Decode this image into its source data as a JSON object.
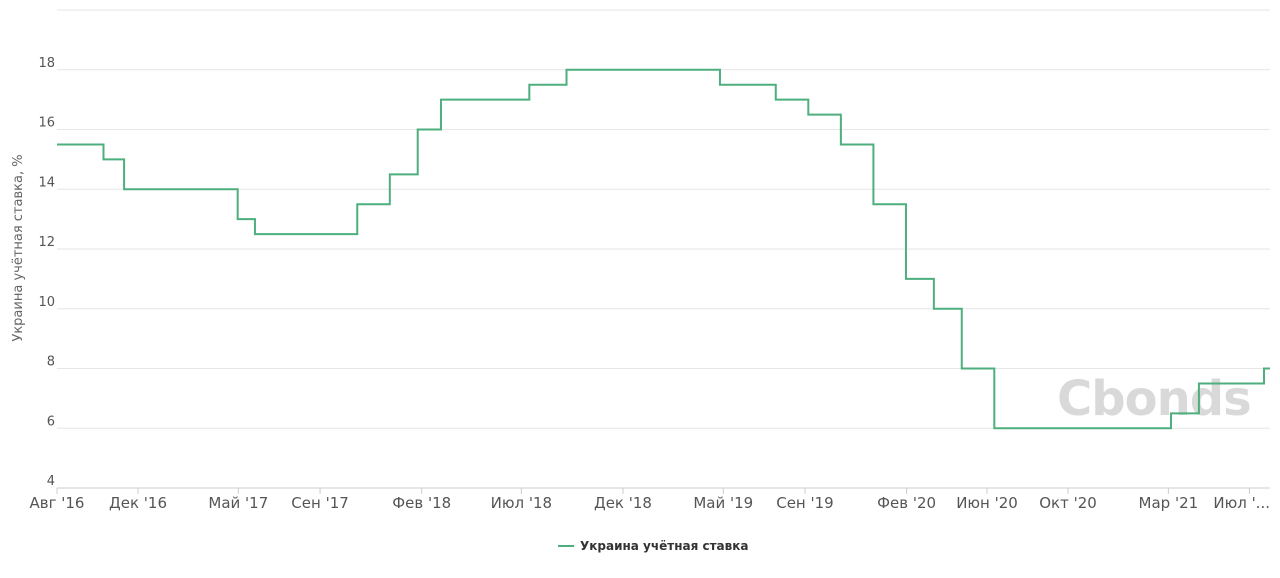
{
  "chart_data": {
    "type": "line",
    "step": true,
    "ylabel": "Украина учётная ставка, %",
    "ylim": [
      4,
      20
    ],
    "yticks": [
      4,
      6,
      8,
      10,
      12,
      14,
      16,
      18
    ],
    "grid": "horizontal",
    "legend_position": "bottom-center",
    "x_ticks": [
      {
        "date": "2016-08-01",
        "label": "Авг '16"
      },
      {
        "date": "2016-12-01",
        "label": "Дек '16"
      },
      {
        "date": "2017-05-01",
        "label": "Май '17"
      },
      {
        "date": "2017-09-01",
        "label": "Сен '17"
      },
      {
        "date": "2018-02-01",
        "label": "Фев '18"
      },
      {
        "date": "2018-07-01",
        "label": "Июл '18"
      },
      {
        "date": "2018-12-01",
        "label": "Дек '18"
      },
      {
        "date": "2019-05-01",
        "label": "Май '19"
      },
      {
        "date": "2019-09-01",
        "label": "Сен '19"
      },
      {
        "date": "2020-02-01",
        "label": "Фев '20"
      },
      {
        "date": "2020-06-01",
        "label": "Июн '20"
      },
      {
        "date": "2020-10-01",
        "label": "Окт '20"
      },
      {
        "date": "2021-03-01",
        "label": "Мар '21"
      },
      {
        "date": "2021-07-01",
        "label": "Июл '..."
      }
    ],
    "x_range": [
      "2016-08-01",
      "2021-08-01"
    ],
    "series": [
      {
        "name": "Украина учётная ставка",
        "color": "#4caf7d",
        "points": [
          {
            "date": "2016-08-01",
            "value": 15.5
          },
          {
            "date": "2016-10-10",
            "value": 15
          },
          {
            "date": "2016-11-10",
            "value": 14
          },
          {
            "date": "2017-04-30",
            "value": 13
          },
          {
            "date": "2017-05-26",
            "value": 12.5
          },
          {
            "date": "2017-10-27",
            "value": 13.5
          },
          {
            "date": "2017-12-15",
            "value": 14.5
          },
          {
            "date": "2018-01-26",
            "value": 16
          },
          {
            "date": "2018-03-02",
            "value": 17
          },
          {
            "date": "2018-07-13",
            "value": 17.5
          },
          {
            "date": "2018-09-07",
            "value": 18
          },
          {
            "date": "2019-04-26",
            "value": 17.5
          },
          {
            "date": "2019-07-19",
            "value": 17
          },
          {
            "date": "2019-09-06",
            "value": 16.5
          },
          {
            "date": "2019-10-25",
            "value": 15.5
          },
          {
            "date": "2019-12-13",
            "value": 13.5
          },
          {
            "date": "2020-01-31",
            "value": 11
          },
          {
            "date": "2020-03-13",
            "value": 10
          },
          {
            "date": "2020-04-24",
            "value": 8
          },
          {
            "date": "2020-06-12",
            "value": 6
          },
          {
            "date": "2021-03-05",
            "value": 6.5
          },
          {
            "date": "2021-04-16",
            "value": 7.5
          },
          {
            "date": "2021-07-23",
            "value": 8
          }
        ]
      }
    ]
  },
  "legend": {
    "label": "Украина учётная ставка",
    "color": "#4caf7d"
  },
  "watermark": {
    "text": "Cbonds"
  }
}
